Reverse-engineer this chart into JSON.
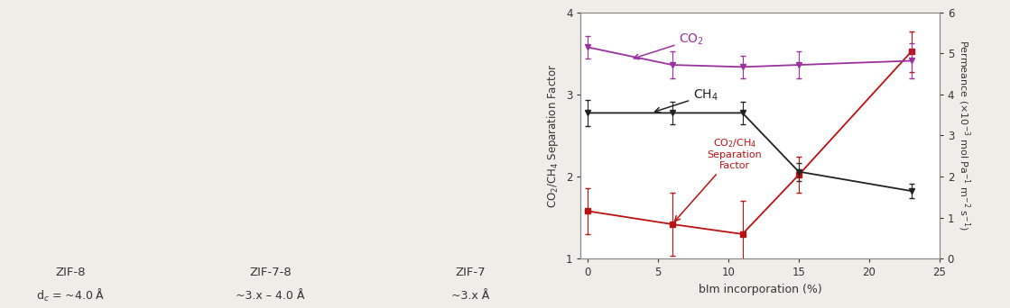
{
  "x": [
    0,
    6,
    11,
    15,
    23
  ],
  "co2_permeance": [
    5.15,
    4.72,
    4.67,
    4.72,
    4.82
  ],
  "ch4_permeance": [
    3.55,
    3.55,
    3.55,
    2.12,
    1.65
  ],
  "sep_factor": [
    1.58,
    1.42,
    1.3,
    2.02,
    3.52
  ],
  "co2_err": [
    0.28,
    0.32,
    0.28,
    0.32,
    0.42
  ],
  "ch4_err": [
    0.32,
    0.28,
    0.28,
    0.22,
    0.18
  ],
  "sep_err": [
    0.28,
    0.38,
    0.4,
    0.22,
    0.25
  ],
  "co2_color": "#9b30a0",
  "ch4_color": "#222222",
  "sep_color": "#bb1111",
  "xlabel": "bIm incorporation (%)",
  "ylabel_left": "CO$_2$/CH$_4$ Separation Factor",
  "ylabel_right": "Permeance (×10$^{-3}$ mol Pa$^{-1}$ m$^{-2}$ s$^{-1}$)",
  "xlim": [
    -0.5,
    25
  ],
  "ylim_left": [
    1,
    4
  ],
  "ylim_right": [
    0,
    6
  ],
  "yticks_left": [
    1,
    2,
    3,
    4
  ],
  "yticks_right": [
    0,
    1,
    2,
    3,
    4,
    5,
    6
  ],
  "xticks": [
    0,
    5,
    10,
    15,
    20,
    25
  ],
  "bg_color": "#f0ede8"
}
